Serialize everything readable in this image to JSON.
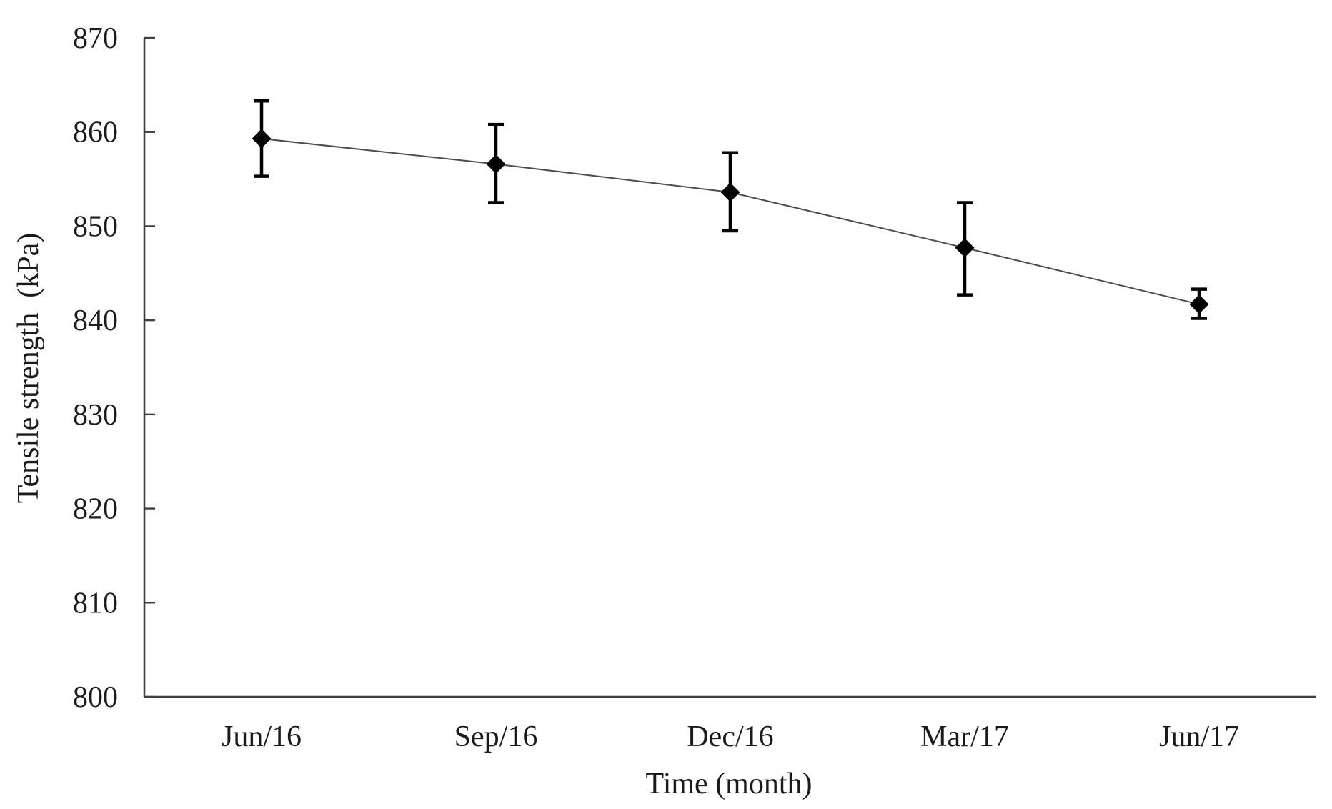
{
  "figure": {
    "background": "#ffffff"
  },
  "chart_data": {
    "type": "line",
    "title": "",
    "xlabel": "Time (month)",
    "ylabel": "Tensile strength  (kPa)",
    "categories": [
      "Jun/16",
      "Sep/16",
      "Dec/16",
      "Mar/17",
      "Jun/17"
    ],
    "series": [
      {
        "name": "Tensile strength",
        "values": [
          859.3,
          856.6,
          853.6,
          847.7,
          841.7
        ],
        "error_plus": [
          4.0,
          4.2,
          4.2,
          4.8,
          1.6
        ],
        "error_minus": [
          4.0,
          4.1,
          4.1,
          5.0,
          1.5
        ]
      }
    ],
    "ylim": [
      800,
      870
    ],
    "ytick_step": 10,
    "yticks": [
      800,
      810,
      820,
      830,
      840,
      850,
      860,
      870
    ],
    "grid": false,
    "legend": false,
    "marker": "diamond",
    "error_bars": true,
    "axis_style": {
      "y_ticks_inward": true,
      "x_ticks": false
    },
    "colors": {
      "marker": "#000000",
      "error": "#000000",
      "line": "#4d4d4d",
      "axis": "#3f3f3f",
      "text": "#1a1a1a"
    }
  }
}
